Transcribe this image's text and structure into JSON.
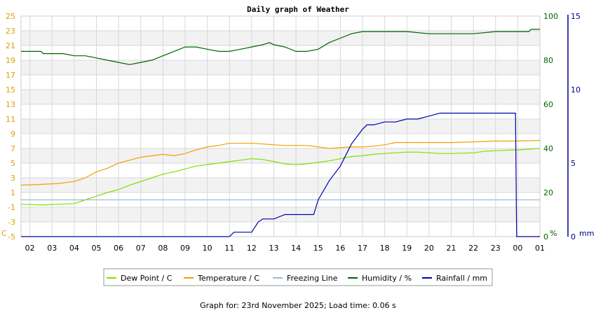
{
  "chart_data": {
    "type": "line",
    "title": "Daily graph of Weather",
    "x": [
      "02",
      "03",
      "04",
      "05",
      "06",
      "07",
      "08",
      "09",
      "10",
      "11",
      "12",
      "13",
      "14",
      "15",
      "16",
      "17",
      "18",
      "19",
      "20",
      "21",
      "22",
      "23",
      "00",
      "01"
    ],
    "left_axis": {
      "unit": "C",
      "ylim": [
        -5,
        25
      ],
      "ticks": [
        -5,
        -3,
        -1,
        1,
        3,
        5,
        7,
        9,
        11,
        13,
        15,
        17,
        19,
        21,
        23,
        25
      ],
      "color": "#e0a000"
    },
    "right_axis_humidity": {
      "unit": "%",
      "ylim": [
        0,
        100
      ],
      "ticks": [
        0,
        20,
        40,
        60,
        80,
        100
      ],
      "color": "#006400"
    },
    "right_axis_rain": {
      "unit": "mm",
      "ylim": [
        0,
        15
      ],
      "ticks": [
        0,
        5,
        10,
        15
      ],
      "color": "#00008b"
    },
    "grid": true,
    "legend_position": "bottom",
    "series": [
      {
        "name": "Dew Point / C",
        "axis": "temp",
        "color": "#7fe000",
        "points": [
          [
            1.6,
            -0.6
          ],
          [
            2.6,
            -0.7
          ],
          [
            3.2,
            -0.6
          ],
          [
            4.0,
            -0.5
          ],
          [
            4.5,
            0.0
          ],
          [
            5.0,
            0.5
          ],
          [
            5.5,
            1.0
          ],
          [
            6.0,
            1.4
          ],
          [
            6.5,
            2.0
          ],
          [
            7.0,
            2.5
          ],
          [
            7.5,
            3.0
          ],
          [
            8.0,
            3.5
          ],
          [
            8.5,
            3.8
          ],
          [
            9.0,
            4.2
          ],
          [
            9.5,
            4.6
          ],
          [
            10.0,
            4.8
          ],
          [
            10.5,
            5.0
          ],
          [
            11.0,
            5.2
          ],
          [
            11.5,
            5.4
          ],
          [
            12.0,
            5.6
          ],
          [
            12.5,
            5.5
          ],
          [
            13.0,
            5.2
          ],
          [
            13.5,
            4.9
          ],
          [
            14.0,
            4.8
          ],
          [
            14.5,
            4.9
          ],
          [
            15.0,
            5.1
          ],
          [
            15.5,
            5.3
          ],
          [
            16.0,
            5.6
          ],
          [
            16.5,
            5.9
          ],
          [
            17.0,
            6.0
          ],
          [
            17.5,
            6.2
          ],
          [
            18.0,
            6.3
          ],
          [
            18.5,
            6.4
          ],
          [
            19.0,
            6.5
          ],
          [
            19.5,
            6.5
          ],
          [
            20.0,
            6.4
          ],
          [
            20.5,
            6.3
          ],
          [
            21.0,
            6.3
          ],
          [
            22.0,
            6.4
          ],
          [
            22.5,
            6.6
          ],
          [
            23.0,
            6.7
          ],
          [
            24.0,
            6.8
          ],
          [
            24.5,
            6.9
          ],
          [
            25.0,
            7.0
          ]
        ]
      },
      {
        "name": "Temperature / C",
        "axis": "temp",
        "color": "#f0a000",
        "points": [
          [
            1.6,
            2.0
          ],
          [
            2.5,
            2.1
          ],
          [
            3.2,
            2.2
          ],
          [
            4.0,
            2.5
          ],
          [
            4.5,
            3.0
          ],
          [
            5.0,
            3.8
          ],
          [
            5.5,
            4.3
          ],
          [
            6.0,
            5.0
          ],
          [
            6.5,
            5.4
          ],
          [
            7.0,
            5.8
          ],
          [
            7.5,
            6.0
          ],
          [
            8.0,
            6.2
          ],
          [
            8.5,
            6.0
          ],
          [
            9.0,
            6.3
          ],
          [
            9.5,
            6.8
          ],
          [
            10.0,
            7.2
          ],
          [
            10.5,
            7.4
          ],
          [
            11.0,
            7.7
          ],
          [
            11.5,
            7.7
          ],
          [
            12.0,
            7.7
          ],
          [
            12.5,
            7.6
          ],
          [
            13.0,
            7.5
          ],
          [
            13.5,
            7.4
          ],
          [
            14.0,
            7.4
          ],
          [
            14.5,
            7.4
          ],
          [
            15.0,
            7.2
          ],
          [
            15.5,
            7.0
          ],
          [
            16.0,
            7.1
          ],
          [
            16.5,
            7.2
          ],
          [
            17.0,
            7.2
          ],
          [
            17.5,
            7.3
          ],
          [
            18.0,
            7.5
          ],
          [
            18.5,
            7.8
          ],
          [
            19.0,
            7.8
          ],
          [
            20.0,
            7.8
          ],
          [
            21.0,
            7.8
          ],
          [
            22.0,
            7.9
          ],
          [
            23.0,
            8.0
          ],
          [
            24.0,
            8.0
          ],
          [
            25.0,
            8.1
          ]
        ]
      },
      {
        "name": "Freezing Line",
        "axis": "temp",
        "color": "#a0b8d0",
        "points": [
          [
            1.6,
            0
          ],
          [
            25.0,
            0
          ]
        ]
      },
      {
        "name": "Humidity / %",
        "axis": "hum",
        "color": "#006400",
        "points": [
          [
            1.6,
            84
          ],
          [
            2.5,
            84
          ],
          [
            2.6,
            83
          ],
          [
            3.5,
            83
          ],
          [
            4.0,
            82
          ],
          [
            4.5,
            82
          ],
          [
            5.0,
            81
          ],
          [
            5.5,
            80
          ],
          [
            6.0,
            79
          ],
          [
            6.5,
            78
          ],
          [
            7.0,
            79
          ],
          [
            7.5,
            80
          ],
          [
            8.0,
            82
          ],
          [
            8.5,
            84
          ],
          [
            9.0,
            86
          ],
          [
            9.5,
            86
          ],
          [
            10.0,
            85
          ],
          [
            10.5,
            84
          ],
          [
            11.0,
            84
          ],
          [
            11.5,
            85
          ],
          [
            12.0,
            86
          ],
          [
            12.5,
            87
          ],
          [
            12.8,
            88
          ],
          [
            13.0,
            87
          ],
          [
            13.5,
            86
          ],
          [
            14.0,
            84
          ],
          [
            14.5,
            84
          ],
          [
            15.0,
            85
          ],
          [
            15.5,
            88
          ],
          [
            16.0,
            90
          ],
          [
            16.5,
            92
          ],
          [
            17.0,
            93
          ],
          [
            18.0,
            93
          ],
          [
            19.0,
            93
          ],
          [
            20.0,
            92
          ],
          [
            21.0,
            92
          ],
          [
            22.0,
            92
          ],
          [
            23.0,
            93
          ],
          [
            24.0,
            93
          ],
          [
            24.5,
            93
          ],
          [
            24.6,
            94
          ],
          [
            25.0,
            94
          ]
        ]
      },
      {
        "name": "Rainfall / mm",
        "axis": "rain",
        "color": "#0000b0",
        "points": [
          [
            1.6,
            0
          ],
          [
            11.0,
            0
          ],
          [
            11.2,
            0.3
          ],
          [
            12.0,
            0.3
          ],
          [
            12.3,
            1.0
          ],
          [
            12.5,
            1.2
          ],
          [
            13.0,
            1.2
          ],
          [
            13.5,
            1.5
          ],
          [
            14.0,
            1.5
          ],
          [
            14.8,
            1.5
          ],
          [
            15.0,
            2.5
          ],
          [
            15.5,
            3.8
          ],
          [
            16.0,
            4.8
          ],
          [
            16.5,
            6.3
          ],
          [
            17.0,
            7.3
          ],
          [
            17.2,
            7.6
          ],
          [
            17.5,
            7.6
          ],
          [
            18.0,
            7.8
          ],
          [
            18.5,
            7.8
          ],
          [
            19.0,
            8.0
          ],
          [
            19.5,
            8.0
          ],
          [
            20.0,
            8.2
          ],
          [
            20.5,
            8.4
          ],
          [
            21.0,
            8.4
          ],
          [
            22.0,
            8.4
          ],
          [
            23.0,
            8.4
          ],
          [
            23.9,
            8.4
          ],
          [
            23.95,
            0
          ],
          [
            25.0,
            0
          ]
        ]
      }
    ]
  },
  "footer": "Graph for: 23rd November 2025; Load time: 0.06 s"
}
